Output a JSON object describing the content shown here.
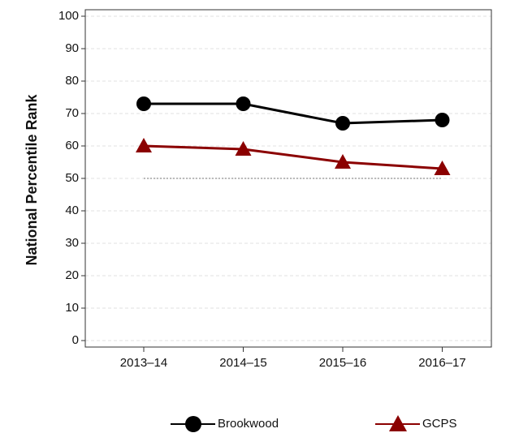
{
  "chart_data": {
    "type": "line",
    "y_label": "National Percentile Rank",
    "categories": [
      "2013–14",
      "2014–15",
      "2015–16",
      "2016–17"
    ],
    "series": [
      {
        "name": "Brookwood",
        "color": "#000000",
        "marker": "circle",
        "values": [
          73,
          73,
          67,
          68
        ]
      },
      {
        "name": "GCPS",
        "color": "#8b0000",
        "marker": "triangle",
        "values": [
          60,
          59,
          55,
          53
        ]
      }
    ],
    "reference_line": 50,
    "ylim": [
      -2,
      102
    ],
    "yticks": [
      0,
      10,
      20,
      30,
      40,
      50,
      60,
      70,
      80,
      90,
      100
    ],
    "grid": true,
    "legend": "bottom"
  }
}
